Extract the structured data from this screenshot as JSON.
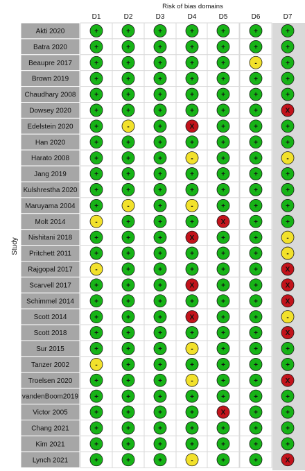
{
  "header": {
    "title": "Risk of bias domains",
    "ylabel": "Study",
    "domains": [
      "D1",
      "D2",
      "D3",
      "D4",
      "D5",
      "D6",
      "D7"
    ]
  },
  "colors": {
    "low": "#17b317",
    "some": "#f2e12b",
    "high": "#c2131b",
    "study_bg": "#a6a6a6",
    "d7_bg": "#d9d9d9"
  },
  "symbols": {
    "low": "+",
    "some": "-",
    "high": "X"
  },
  "chart_data": {
    "type": "table",
    "title": "Risk of bias domains",
    "ylabel": "Study",
    "columns": [
      "D1",
      "D2",
      "D3",
      "D4",
      "D5",
      "D6",
      "D7"
    ],
    "rows": [
      {
        "study": "Akti 2020",
        "judgements": [
          "+",
          "+",
          "+",
          "+",
          "+",
          "+",
          "+"
        ]
      },
      {
        "study": "Batra 2020",
        "judgements": [
          "+",
          "+",
          "+",
          "+",
          "+",
          "+",
          "+"
        ]
      },
      {
        "study": "Beaupre 2017",
        "judgements": [
          "+",
          "+",
          "+",
          "+",
          "+",
          "-",
          "+"
        ]
      },
      {
        "study": "Brown 2019",
        "judgements": [
          "+",
          "+",
          "+",
          "+",
          "+",
          "+",
          "+"
        ]
      },
      {
        "study": "Chaudhary 2008",
        "judgements": [
          "+",
          "+",
          "+",
          "+",
          "+",
          "+",
          "+"
        ]
      },
      {
        "study": "Dowsey 2020",
        "judgements": [
          "+",
          "+",
          "+",
          "+",
          "+",
          "+",
          "X"
        ]
      },
      {
        "study": "Edelstein 2020",
        "judgements": [
          "+",
          "-",
          "+",
          "X",
          "+",
          "+",
          "+"
        ]
      },
      {
        "study": "Han 2020",
        "judgements": [
          "+",
          "+",
          "+",
          "+",
          "+",
          "+",
          "+"
        ]
      },
      {
        "study": "Harato 2008",
        "judgements": [
          "+",
          "+",
          "+",
          "-",
          "+",
          "+",
          "-"
        ]
      },
      {
        "study": "Jang 2019",
        "judgements": [
          "+",
          "+",
          "+",
          "+",
          "+",
          "+",
          "+"
        ]
      },
      {
        "study": "Kulshrestha 2020",
        "judgements": [
          "+",
          "+",
          "+",
          "+",
          "+",
          "+",
          "+"
        ]
      },
      {
        "study": "Maruyama 2004",
        "judgements": [
          "+",
          "-",
          "+",
          "-",
          "+",
          "+",
          "+"
        ]
      },
      {
        "study": "Molt 2014",
        "judgements": [
          "-",
          "+",
          "+",
          "+",
          "X",
          "+",
          "+"
        ]
      },
      {
        "study": "Nishitani 2018",
        "judgements": [
          "+",
          "+",
          "+",
          "X",
          "+",
          "+",
          "-"
        ]
      },
      {
        "study": "Pritchett 2011",
        "judgements": [
          "+",
          "+",
          "+",
          "+",
          "+",
          "+",
          "-"
        ]
      },
      {
        "study": "Rajgopal 2017",
        "judgements": [
          "-",
          "+",
          "+",
          "+",
          "+",
          "+",
          "X"
        ]
      },
      {
        "study": "Scarvell 2017",
        "judgements": [
          "+",
          "+",
          "+",
          "X",
          "+",
          "+",
          "X"
        ]
      },
      {
        "study": "Schimmel 2014",
        "judgements": [
          "+",
          "+",
          "+",
          "+",
          "+",
          "+",
          "X"
        ]
      },
      {
        "study": "Scott 2014",
        "judgements": [
          "+",
          "+",
          "+",
          "X",
          "+",
          "+",
          "-"
        ]
      },
      {
        "study": "Scott 2018",
        "judgements": [
          "+",
          "+",
          "+",
          "+",
          "+",
          "+",
          "X"
        ]
      },
      {
        "study": "Sur 2015",
        "judgements": [
          "+",
          "+",
          "+",
          "-",
          "+",
          "+",
          "+"
        ]
      },
      {
        "study": "Tanzer 2002",
        "judgements": [
          "-",
          "+",
          "+",
          "+",
          "+",
          "+",
          "+"
        ]
      },
      {
        "study": "Troelsen 2020",
        "judgements": [
          "+",
          "+",
          "+",
          "-",
          "+",
          "+",
          "X"
        ]
      },
      {
        "study": "vandenBoom2019",
        "judgements": [
          "+",
          "+",
          "+",
          "+",
          "+",
          "+",
          "+"
        ]
      },
      {
        "study": "Victor 2005",
        "judgements": [
          "+",
          "+",
          "+",
          "+",
          "X",
          "+",
          "+"
        ]
      },
      {
        "study": "Chang 2021",
        "judgements": [
          "+",
          "+",
          "+",
          "+",
          "+",
          "+",
          "+"
        ]
      },
      {
        "study": "Kim 2021",
        "judgements": [
          "+",
          "+",
          "+",
          "+",
          "+",
          "+",
          "+"
        ]
      },
      {
        "study": "Lynch 2021",
        "judgements": [
          "+",
          "+",
          "+",
          "-",
          "+",
          "+",
          "X"
        ]
      }
    ]
  }
}
